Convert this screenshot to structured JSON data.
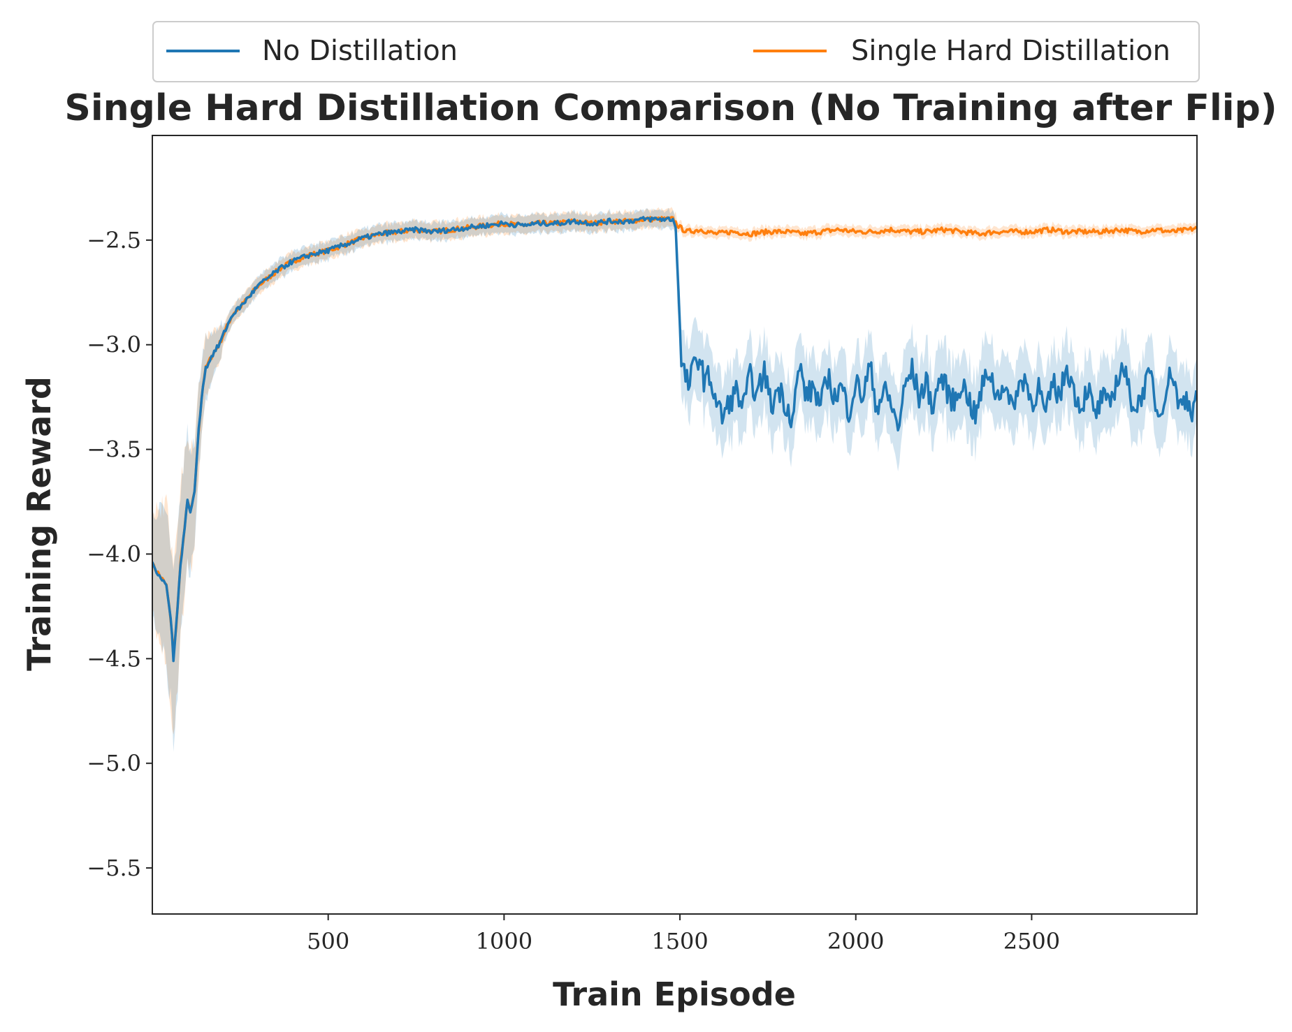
{
  "chart_data": {
    "type": "line",
    "title": "Single Hard Distillation Comparison (No Training after Flip)",
    "xlabel": "Train Episode",
    "ylabel": "Training Reward",
    "xlim": [
      0,
      2970
    ],
    "ylim": [
      -5.72,
      -2.0
    ],
    "x_ticks": [
      500,
      1000,
      1500,
      2000,
      2500
    ],
    "x_tick_labels": [
      "500",
      "1000",
      "1500",
      "2000",
      "2500"
    ],
    "y_ticks": [
      -2.5,
      -3.0,
      -3.5,
      -4.0,
      -4.5,
      -5.0,
      -5.5
    ],
    "y_tick_labels": [
      "−2.5",
      "−3.0",
      "−3.5",
      "−4.0",
      "−4.5",
      "−5.0",
      "−5.5"
    ],
    "grid": false,
    "legend_placement": "top, above title, two columns",
    "series": [
      {
        "name": "No Distillation",
        "color": "#1f77b4",
        "band_color": "#1f77b4",
        "points": [
          [
            0,
            -4.05
          ],
          [
            20,
            -4.1
          ],
          [
            40,
            -4.15
          ],
          [
            55,
            -4.35
          ],
          [
            60,
            -4.5
          ],
          [
            70,
            -4.3
          ],
          [
            80,
            -4.05
          ],
          [
            90,
            -3.9
          ],
          [
            100,
            -3.75
          ],
          [
            110,
            -3.8
          ],
          [
            120,
            -3.7
          ],
          [
            130,
            -3.45
          ],
          [
            140,
            -3.25
          ],
          [
            150,
            -3.12
          ],
          [
            170,
            -3.05
          ],
          [
            190,
            -3.0
          ],
          [
            210,
            -2.92
          ],
          [
            230,
            -2.85
          ],
          [
            250,
            -2.82
          ],
          [
            270,
            -2.78
          ],
          [
            300,
            -2.72
          ],
          [
            330,
            -2.68
          ],
          [
            360,
            -2.64
          ],
          [
            400,
            -2.6
          ],
          [
            450,
            -2.57
          ],
          [
            500,
            -2.55
          ],
          [
            550,
            -2.52
          ],
          [
            600,
            -2.49
          ],
          [
            650,
            -2.47
          ],
          [
            700,
            -2.46
          ],
          [
            750,
            -2.45
          ],
          [
            800,
            -2.46
          ],
          [
            850,
            -2.45
          ],
          [
            900,
            -2.44
          ],
          [
            950,
            -2.43
          ],
          [
            1000,
            -2.42
          ],
          [
            1050,
            -2.43
          ],
          [
            1100,
            -2.42
          ],
          [
            1150,
            -2.42
          ],
          [
            1200,
            -2.41
          ],
          [
            1250,
            -2.42
          ],
          [
            1300,
            -2.41
          ],
          [
            1350,
            -2.41
          ],
          [
            1400,
            -2.4
          ],
          [
            1450,
            -2.4
          ],
          [
            1480,
            -2.4
          ],
          [
            1490,
            -2.45
          ],
          [
            1495,
            -2.7
          ],
          [
            1500,
            -2.95
          ],
          [
            1505,
            -3.1
          ],
          [
            1515,
            -3.15
          ],
          [
            1525,
            -3.2
          ],
          [
            1540,
            -3.1
          ],
          [
            1555,
            -3.05
          ],
          [
            1570,
            -3.18
          ],
          [
            1585,
            -3.15
          ],
          [
            1600,
            -3.25
          ],
          [
            1620,
            -3.35
          ],
          [
            1640,
            -3.28
          ],
          [
            1660,
            -3.22
          ],
          [
            1680,
            -3.3
          ],
          [
            1700,
            -3.15
          ],
          [
            1720,
            -3.25
          ],
          [
            1740,
            -3.12
          ],
          [
            1760,
            -3.3
          ],
          [
            1780,
            -3.2
          ],
          [
            1800,
            -3.28
          ],
          [
            1820,
            -3.35
          ],
          [
            1840,
            -3.1
          ],
          [
            1860,
            -3.25
          ],
          [
            1880,
            -3.2
          ],
          [
            1900,
            -3.3
          ],
          [
            1920,
            -3.15
          ],
          [
            1940,
            -3.25
          ],
          [
            1960,
            -3.2
          ],
          [
            1980,
            -3.32
          ],
          [
            2000,
            -3.18
          ],
          [
            2020,
            -3.25
          ],
          [
            2040,
            -3.1
          ],
          [
            2060,
            -3.3
          ],
          [
            2080,
            -3.22
          ],
          [
            2100,
            -3.28
          ],
          [
            2120,
            -3.4
          ],
          [
            2140,
            -3.2
          ],
          [
            2160,
            -3.12
          ],
          [
            2180,
            -3.25
          ],
          [
            2200,
            -3.18
          ],
          [
            2220,
            -3.3
          ],
          [
            2240,
            -3.15
          ],
          [
            2260,
            -3.22
          ],
          [
            2280,
            -3.28
          ],
          [
            2300,
            -3.18
          ],
          [
            2320,
            -3.25
          ],
          [
            2340,
            -3.35
          ],
          [
            2360,
            -3.2
          ],
          [
            2380,
            -3.12
          ],
          [
            2400,
            -3.25
          ],
          [
            2420,
            -3.18
          ],
          [
            2440,
            -3.3
          ],
          [
            2460,
            -3.22
          ],
          [
            2480,
            -3.15
          ],
          [
            2500,
            -3.28
          ],
          [
            2520,
            -3.2
          ],
          [
            2540,
            -3.35
          ],
          [
            2560,
            -3.18
          ],
          [
            2580,
            -3.25
          ],
          [
            2600,
            -3.1
          ],
          [
            2620,
            -3.22
          ],
          [
            2640,
            -3.3
          ],
          [
            2660,
            -3.2
          ],
          [
            2680,
            -3.35
          ],
          [
            2700,
            -3.25
          ],
          [
            2720,
            -3.3
          ],
          [
            2740,
            -3.18
          ],
          [
            2760,
            -3.1
          ],
          [
            2780,
            -3.25
          ],
          [
            2800,
            -3.3
          ],
          [
            2820,
            -3.2
          ],
          [
            2840,
            -3.15
          ],
          [
            2860,
            -3.35
          ],
          [
            2880,
            -3.22
          ],
          [
            2900,
            -3.12
          ],
          [
            2920,
            -3.3
          ],
          [
            2940,
            -3.25
          ],
          [
            2960,
            -3.32
          ],
          [
            2970,
            -3.15
          ]
        ]
      },
      {
        "name": "Single Hard Distillation",
        "color": "#ff7f0e",
        "band_color": "#ff7f0e",
        "points": [
          [
            0,
            -4.05
          ],
          [
            20,
            -4.1
          ],
          [
            40,
            -4.15
          ],
          [
            55,
            -4.35
          ],
          [
            60,
            -4.5
          ],
          [
            70,
            -4.3
          ],
          [
            80,
            -4.05
          ],
          [
            90,
            -3.9
          ],
          [
            100,
            -3.75
          ],
          [
            110,
            -3.8
          ],
          [
            120,
            -3.7
          ],
          [
            130,
            -3.45
          ],
          [
            140,
            -3.25
          ],
          [
            150,
            -3.12
          ],
          [
            170,
            -3.05
          ],
          [
            190,
            -3.0
          ],
          [
            210,
            -2.92
          ],
          [
            230,
            -2.85
          ],
          [
            250,
            -2.82
          ],
          [
            270,
            -2.78
          ],
          [
            300,
            -2.72
          ],
          [
            330,
            -2.68
          ],
          [
            360,
            -2.64
          ],
          [
            400,
            -2.6
          ],
          [
            450,
            -2.57
          ],
          [
            500,
            -2.55
          ],
          [
            550,
            -2.52
          ],
          [
            600,
            -2.49
          ],
          [
            650,
            -2.47
          ],
          [
            700,
            -2.46
          ],
          [
            750,
            -2.45
          ],
          [
            800,
            -2.46
          ],
          [
            850,
            -2.45
          ],
          [
            900,
            -2.44
          ],
          [
            950,
            -2.43
          ],
          [
            1000,
            -2.42
          ],
          [
            1050,
            -2.43
          ],
          [
            1100,
            -2.42
          ],
          [
            1150,
            -2.42
          ],
          [
            1200,
            -2.41
          ],
          [
            1250,
            -2.42
          ],
          [
            1300,
            -2.41
          ],
          [
            1350,
            -2.41
          ],
          [
            1400,
            -2.4
          ],
          [
            1450,
            -2.4
          ],
          [
            1480,
            -2.4
          ],
          [
            1500,
            -2.44
          ],
          [
            1520,
            -2.46
          ],
          [
            1560,
            -2.45
          ],
          [
            1600,
            -2.47
          ],
          [
            1650,
            -2.46
          ],
          [
            1700,
            -2.47
          ],
          [
            1750,
            -2.46
          ],
          [
            1800,
            -2.46
          ],
          [
            1850,
            -2.47
          ],
          [
            1900,
            -2.46
          ],
          [
            1950,
            -2.45
          ],
          [
            2000,
            -2.46
          ],
          [
            2050,
            -2.46
          ],
          [
            2100,
            -2.45
          ],
          [
            2150,
            -2.46
          ],
          [
            2200,
            -2.46
          ],
          [
            2250,
            -2.45
          ],
          [
            2300,
            -2.46
          ],
          [
            2350,
            -2.47
          ],
          [
            2400,
            -2.46
          ],
          [
            2450,
            -2.46
          ],
          [
            2500,
            -2.46
          ],
          [
            2550,
            -2.45
          ],
          [
            2600,
            -2.46
          ],
          [
            2650,
            -2.46
          ],
          [
            2700,
            -2.46
          ],
          [
            2750,
            -2.45
          ],
          [
            2800,
            -2.46
          ],
          [
            2850,
            -2.45
          ],
          [
            2900,
            -2.46
          ],
          [
            2950,
            -2.45
          ],
          [
            2970,
            -2.44
          ]
        ]
      }
    ]
  }
}
